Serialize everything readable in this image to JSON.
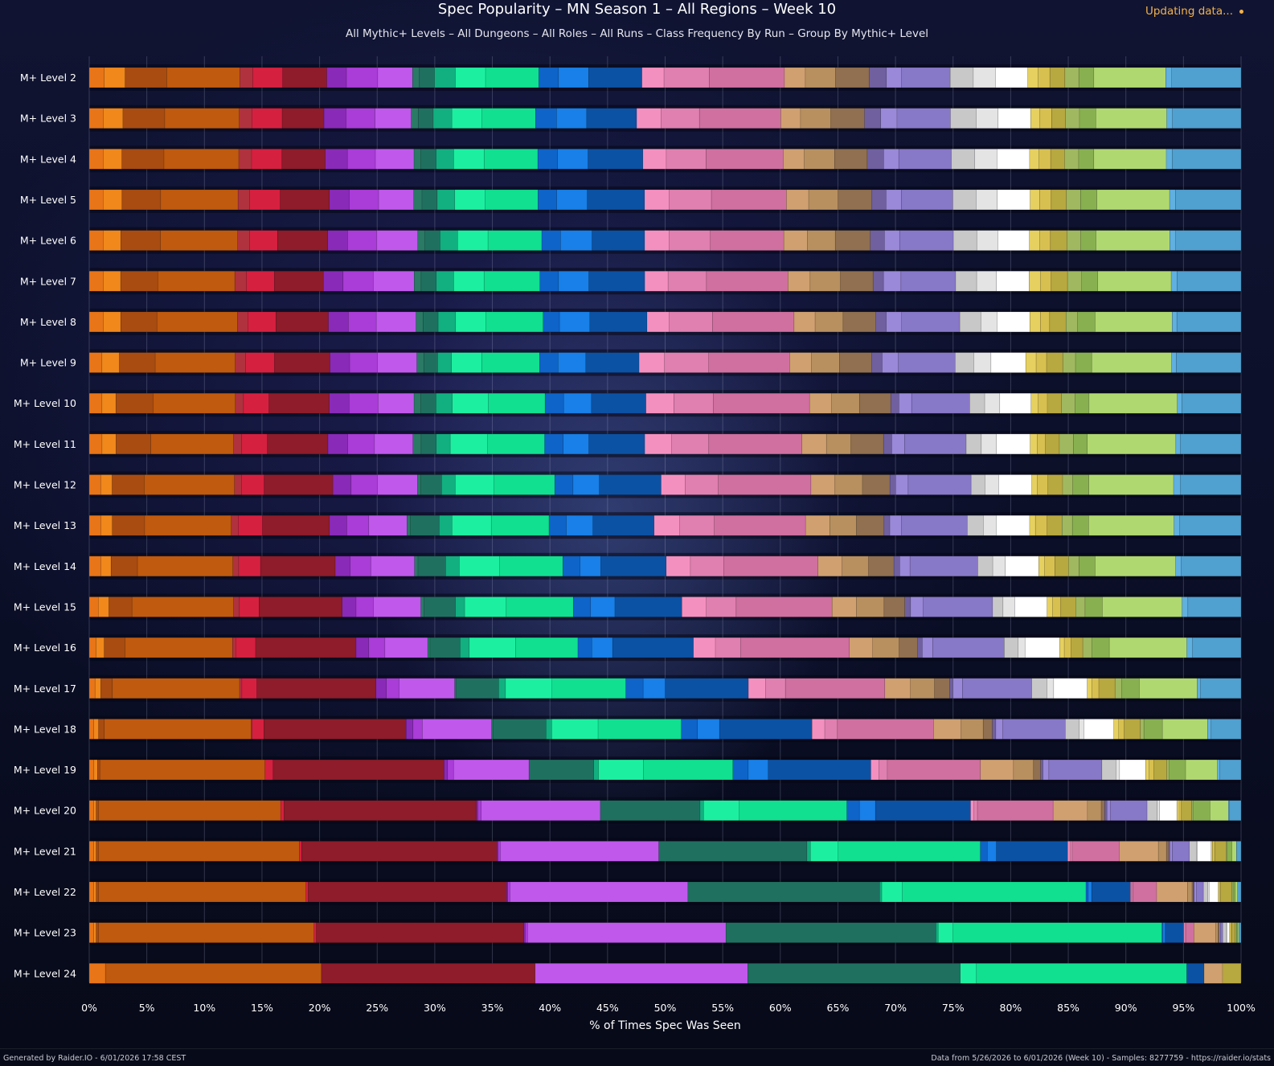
{
  "header": {
    "title": "Spec Popularity – MN Season 1 – All Regions – Week 10",
    "subtitle": "All Mythic+ Levels – All Dungeons – All Roles – All Runs – Class Frequency By Run – Group By Mythic+ Level",
    "status": "Updating data..."
  },
  "footer": {
    "left": "Generated by Raider.IO - 6/01/2026 17:58 CEST",
    "right": "Data from 5/26/2026 to 6/01/2026 (Week 10) - Samples: 8277759 - https://raider.io/stats"
  },
  "chart_data": {
    "type": "bar",
    "orientation": "horizontal",
    "stacked": true,
    "title": "Spec Popularity – MN Season 1 – All Regions – Week 10",
    "subtitle": "All Mythic+ Levels – All Dungeons – All Roles – All Runs – Class Frequency By Run – Group By Mythic+ Level",
    "xlabel": "% of Times Spec Was Seen",
    "xlim": [
      0,
      100
    ],
    "xticks": [
      "0%",
      "5%",
      "10%",
      "15%",
      "20%",
      "25%",
      "30%",
      "35%",
      "40%",
      "45%",
      "50%",
      "55%",
      "60%",
      "65%",
      "70%",
      "75%",
      "80%",
      "85%",
      "90%",
      "95%",
      "100%"
    ],
    "grid": true,
    "legend": "none",
    "categories": [
      "M+ Level 2",
      "M+ Level 3",
      "M+ Level 4",
      "M+ Level 5",
      "M+ Level 6",
      "M+ Level 7",
      "M+ Level 8",
      "M+ Level 9",
      "M+ Level 10",
      "M+ Level 11",
      "M+ Level 12",
      "M+ Level 13",
      "M+ Level 14",
      "M+ Level 15",
      "M+ Level 16",
      "M+ Level 17",
      "M+ Level 18",
      "M+ Level 19",
      "M+ Level 20",
      "M+ Level 21",
      "M+ Level 22",
      "M+ Level 23",
      "M+ Level 24"
    ],
    "segment_colors": [
      "#e87518",
      "#f0881c",
      "#a84c12",
      "#c05a0e",
      "#b0323e",
      "#d62040",
      "#8e1c2a",
      "#8a2ab8",
      "#aa3cd8",
      "#c058ec",
      "#2a7a66",
      "#207060",
      "#12b080",
      "#1cf0a0",
      "#10e090",
      "#0e64c8",
      "#1880e8",
      "#0c52a4",
      "#f490c0",
      "#e080b0",
      "#d070a0",
      "#d0a070",
      "#b89060",
      "#907050",
      "#7060a0",
      "#9a88d8",
      "#8878c8",
      "#c8c8c8",
      "#e4e4e4",
      "#ffffff",
      "#e6d060",
      "#d8c050",
      "#b8a840",
      "#a0b860",
      "#88b050",
      "#b0d870",
      "#60b0e0",
      "#50a0d0"
    ],
    "values": [
      [
        1.3,
        1.8,
        3.6,
        6.3,
        1.1,
        2.6,
        3.8,
        1.7,
        2.7,
        3.0,
        0.6,
        1.3,
        1.8,
        2.6,
        4.6,
        1.7,
        2.6,
        4.6,
        1.9,
        3.9,
        6.5,
        1.8,
        2.6,
        2.9,
        1.5,
        1.3,
        4.2,
        2.0,
        1.9,
        2.8,
        0.9,
        1.0,
        1.3,
        1.2,
        1.3,
        6.2,
        0.5,
        6.0
      ],
      [
        1.2,
        1.7,
        3.6,
        6.4,
        1.1,
        2.6,
        3.6,
        1.9,
        2.5,
        3.1,
        0.6,
        1.3,
        1.6,
        2.6,
        4.6,
        1.8,
        2.6,
        4.3,
        2.1,
        3.3,
        7.0,
        1.7,
        2.6,
        2.9,
        1.4,
        1.4,
        4.6,
        2.2,
        1.9,
        2.8,
        0.8,
        1.0,
        1.2,
        1.2,
        1.4,
        6.1,
        0.5,
        5.9
      ],
      [
        1.2,
        1.6,
        3.6,
        6.4,
        1.1,
        2.6,
        3.7,
        1.9,
        2.4,
        3.3,
        0.6,
        1.3,
        1.5,
        2.6,
        4.6,
        1.7,
        2.6,
        4.7,
        2.0,
        3.4,
        6.6,
        1.8,
        2.6,
        2.8,
        1.4,
        1.3,
        4.5,
        2.0,
        1.9,
        2.8,
        0.8,
        1.0,
        1.2,
        1.2,
        1.3,
        6.2,
        0.5,
        5.9
      ],
      [
        1.2,
        1.6,
        3.3,
        6.6,
        1.0,
        2.6,
        4.2,
        1.7,
        2.5,
        3.0,
        0.7,
        1.3,
        1.5,
        2.6,
        4.5,
        1.6,
        2.6,
        4.9,
        2.1,
        3.6,
        6.4,
        1.9,
        2.5,
        2.9,
        1.2,
        1.3,
        4.4,
        2.0,
        1.8,
        2.8,
        0.8,
        1.0,
        1.3,
        1.2,
        1.4,
        6.2,
        0.5,
        5.6
      ],
      [
        1.2,
        1.5,
        3.4,
        6.6,
        1.0,
        2.4,
        4.3,
        1.7,
        2.5,
        3.5,
        0.6,
        1.3,
        1.5,
        2.6,
        4.6,
        1.6,
        2.7,
        4.5,
        2.1,
        3.5,
        6.3,
        2.0,
        2.4,
        3.0,
        1.2,
        1.3,
        4.6,
        2.0,
        1.8,
        2.7,
        0.9,
        0.9,
        1.4,
        1.2,
        1.3,
        6.3,
        0.5,
        5.6
      ],
      [
        1.2,
        1.5,
        3.2,
        6.6,
        1.0,
        2.4,
        4.2,
        1.7,
        2.6,
        3.5,
        0.6,
        1.3,
        1.5,
        2.6,
        4.8,
        1.6,
        2.6,
        4.8,
        2.0,
        3.3,
        7.0,
        1.9,
        2.6,
        2.8,
        0.9,
        1.5,
        4.7,
        1.8,
        1.7,
        2.8,
        1.0,
        0.9,
        1.4,
        1.2,
        1.4,
        6.3,
        0.5,
        5.5
      ],
      [
        1.2,
        1.5,
        3.1,
        6.9,
        0.9,
        2.4,
        4.5,
        1.7,
        2.4,
        3.4,
        0.6,
        1.3,
        1.5,
        2.6,
        4.9,
        1.4,
        2.6,
        4.9,
        1.9,
        3.7,
        7.0,
        1.8,
        2.4,
        2.8,
        0.9,
        1.3,
        5.0,
        1.8,
        1.4,
        2.8,
        0.9,
        0.8,
        1.4,
        1.0,
        1.5,
        6.6,
        0.4,
        5.5
      ],
      [
        1.1,
        1.5,
        3.1,
        6.9,
        0.9,
        2.5,
        4.8,
        1.7,
        2.4,
        3.4,
        0.6,
        1.2,
        1.2,
        2.6,
        5.0,
        1.6,
        2.4,
        4.6,
        2.2,
        3.8,
        7.0,
        1.9,
        2.4,
        2.8,
        0.9,
        1.4,
        4.9,
        1.6,
        1.5,
        3.0,
        0.9,
        0.9,
        1.4,
        1.1,
        1.4,
        6.9,
        0.4,
        5.6
      ],
      [
        1.1,
        1.2,
        3.2,
        7.1,
        0.7,
        2.2,
        5.2,
        1.7,
        2.5,
        3.1,
        0.6,
        1.3,
        1.4,
        3.1,
        4.9,
        1.6,
        2.4,
        4.7,
        2.4,
        3.4,
        8.3,
        1.9,
        2.4,
        2.7,
        0.7,
        1.1,
        5.0,
        1.3,
        1.3,
        2.7,
        0.6,
        0.8,
        1.2,
        1.2,
        1.2,
        7.6,
        0.4,
        5.1
      ],
      [
        1.1,
        1.2,
        3.0,
        7.1,
        0.7,
        2.2,
        5.2,
        1.7,
        2.3,
        3.3,
        0.7,
        1.3,
        1.2,
        3.2,
        4.9,
        1.6,
        2.2,
        4.8,
        2.3,
        3.2,
        8.0,
        2.1,
        2.1,
        2.8,
        0.7,
        1.1,
        5.3,
        1.3,
        1.3,
        2.9,
        0.6,
        0.7,
        1.2,
        1.2,
        1.2,
        7.6,
        0.4,
        5.2
      ],
      [
        1.0,
        1.0,
        2.8,
        7.9,
        0.6,
        2.0,
        6.0,
        1.6,
        2.3,
        3.5,
        0.3,
        1.8,
        1.2,
        3.4,
        5.3,
        1.6,
        2.3,
        5.4,
        2.1,
        2.9,
        8.1,
        2.1,
        2.4,
        2.4,
        0.5,
        1.1,
        5.5,
        1.2,
        1.2,
        2.9,
        0.5,
        0.9,
        1.3,
        0.9,
        1.4,
        7.4,
        0.6,
        5.3
      ],
      [
        1.0,
        1.0,
        2.8,
        7.5,
        0.6,
        2.1,
        5.8,
        1.5,
        1.9,
        3.3,
        0.3,
        2.5,
        1.1,
        3.4,
        5.0,
        1.5,
        2.3,
        5.3,
        2.2,
        3.0,
        7.9,
        2.1,
        2.3,
        2.4,
        0.5,
        1.0,
        5.7,
        1.4,
        1.1,
        2.9,
        0.5,
        1.0,
        1.3,
        0.9,
        1.4,
        7.4,
        0.5,
        5.3
      ],
      [
        1.0,
        0.9,
        2.3,
        8.3,
        0.5,
        1.9,
        6.5,
        1.3,
        1.8,
        3.8,
        0.3,
        2.4,
        1.2,
        3.5,
        5.5,
        1.5,
        1.8,
        5.7,
        2.1,
        2.9,
        8.2,
        2.1,
        2.3,
        2.2,
        0.5,
        0.9,
        5.9,
        1.3,
        1.1,
        2.9,
        0.5,
        0.9,
        1.2,
        0.9,
        1.4,
        7.0,
        0.5,
        5.2
      ],
      [
        0.8,
        0.9,
        2.0,
        8.8,
        0.5,
        1.7,
        7.2,
        1.2,
        1.5,
        4.1,
        0.3,
        2.7,
        0.8,
        3.6,
        5.8,
        1.5,
        2.1,
        5.8,
        2.1,
        2.6,
        8.3,
        2.1,
        2.4,
        1.8,
        0.5,
        1.1,
        6.0,
        0.9,
        1.0,
        2.8,
        0.5,
        0.7,
        1.3,
        0.8,
        1.5,
        6.9,
        0.5,
        4.6
      ],
      [
        0.6,
        0.7,
        1.8,
        9.3,
        0.3,
        1.7,
        8.7,
        1.1,
        1.4,
        3.7,
        0.2,
        2.6,
        0.8,
        4.0,
        5.4,
        1.2,
        1.8,
        7.0,
        1.9,
        2.2,
        9.4,
        2.0,
        2.3,
        1.6,
        0.4,
        0.9,
        6.2,
        1.2,
        0.6,
        3.0,
        0.4,
        0.6,
        1.0,
        0.8,
        1.5,
        6.7,
        0.5,
        4.2
      ],
      [
        0.5,
        0.5,
        1.0,
        11.0,
        0.2,
        1.3,
        10.3,
        0.9,
        1.1,
        4.8,
        0.1,
        3.7,
        0.6,
        4.0,
        6.4,
        1.5,
        1.9,
        7.2,
        1.5,
        1.7,
        8.6,
        2.2,
        2.1,
        1.3,
        0.3,
        0.8,
        6.0,
        1.3,
        0.6,
        2.9,
        0.4,
        0.6,
        1.4,
        0.6,
        1.5,
        5.0,
        0.3,
        3.5
      ],
      [
        0.4,
        0.4,
        0.5,
        12.7,
        0.1,
        1.0,
        12.3,
        0.6,
        0.8,
        6.0,
        0.1,
        4.6,
        0.5,
        4.0,
        7.2,
        1.4,
        1.9,
        8.0,
        1.1,
        1.1,
        8.3,
        2.4,
        1.9,
        0.8,
        0.3,
        0.6,
        5.4,
        1.2,
        0.4,
        2.6,
        0.4,
        0.5,
        1.4,
        0.3,
        1.6,
        3.9,
        0.3,
        2.6
      ],
      [
        0.4,
        0.3,
        0.2,
        14.0,
        0.0,
        0.7,
        14.5,
        0.3,
        0.5,
        6.4,
        0.0,
        5.5,
        0.4,
        3.8,
        7.6,
        1.3,
        1.7,
        8.7,
        0.7,
        0.7,
        7.9,
        2.8,
        1.7,
        0.6,
        0.2,
        0.5,
        4.5,
        1.2,
        0.3,
        2.2,
        0.3,
        0.4,
        1.1,
        0.2,
        1.4,
        2.7,
        0.2,
        1.8
      ],
      [
        0.4,
        0.2,
        0.2,
        15.9,
        0.0,
        0.3,
        16.8,
        0.1,
        0.3,
        10.4,
        0.0,
        8.7,
        0.3,
        3.1,
        9.4,
        1.1,
        1.4,
        8.3,
        0.3,
        0.3,
        6.6,
        3.0,
        1.2,
        0.3,
        0.2,
        0.3,
        3.2,
        0.9,
        0.2,
        1.5,
        0.2,
        0.2,
        0.9,
        0.1,
        1.5,
        1.6,
        0.1,
        1.0
      ],
      [
        0.4,
        0.2,
        0.2,
        17.5,
        0.0,
        0.2,
        17.0,
        0.1,
        0.2,
        13.8,
        0.0,
        12.9,
        0.3,
        2.4,
        12.4,
        0.6,
        0.8,
        6.2,
        0.2,
        0.2,
        4.1,
        3.4,
        0.7,
        0.2,
        0.1,
        0.2,
        1.5,
        0.6,
        0.1,
        1.2,
        0.1,
        0.2,
        1.0,
        0.1,
        0.4,
        0.4,
        0.0,
        0.4
      ],
      [
        0.4,
        0.2,
        0.2,
        18.2,
        0.0,
        0.2,
        17.4,
        0.1,
        0.2,
        15.6,
        0.0,
        16.8,
        0.2,
        1.8,
        16.1,
        0.2,
        0.3,
        3.4,
        0.1,
        0.1,
        2.1,
        2.7,
        0.4,
        0.1,
        0.1,
        0.2,
        0.6,
        0.4,
        0.1,
        0.8,
        0.1,
        0.1,
        1.0,
        0.1,
        0.2,
        0.2,
        0.0,
        0.3
      ],
      [
        0.4,
        0.2,
        0.2,
        18.8,
        0.0,
        0.2,
        18.1,
        0.1,
        0.2,
        17.3,
        0.0,
        18.3,
        0.2,
        1.3,
        18.2,
        0.1,
        0.2,
        1.6,
        0.1,
        0.1,
        0.7,
        1.9,
        0.2,
        0.1,
        0.0,
        0.1,
        0.2,
        0.3,
        0.1,
        0.2,
        0.1,
        0.1,
        0.3,
        0.1,
        0.1,
        0.1,
        0.0,
        0.2
      ],
      [
        1.4,
        0.0,
        0.0,
        18.7,
        0.0,
        0.0,
        18.5,
        0.0,
        0.0,
        18.4,
        0.0,
        18.4,
        0.0,
        1.4,
        18.2,
        0.0,
        0.0,
        1.5,
        0.0,
        0.0,
        0.0,
        1.6,
        0.0,
        0.0,
        0.0,
        0.0,
        0.0,
        0.0,
        0.0,
        0.0,
        0.0,
        0.0,
        1.6,
        0.0,
        0.0,
        0.0,
        0.0,
        0.0
      ]
    ]
  }
}
